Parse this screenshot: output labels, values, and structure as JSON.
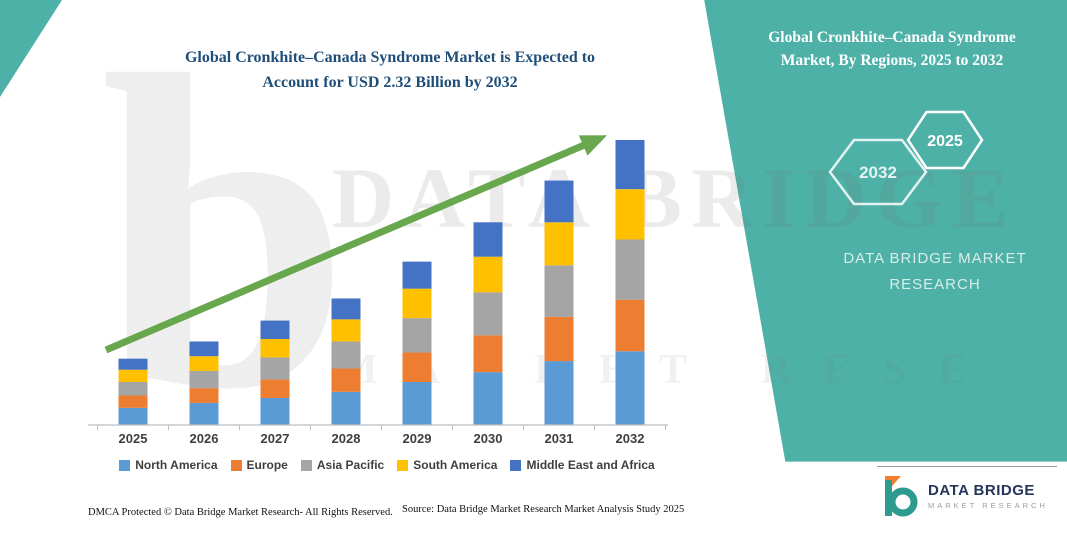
{
  "main": {
    "title_line1": "Global Cronkhite–Canada Syndrome Market is Expected to",
    "title_line2": "Account for USD 2.32 Billion by 2032"
  },
  "side_panel": {
    "heading": "Global Cronkhite–Canada Syndrome Market, By Regions, 2025 to 2032",
    "hex_back_label": "2032",
    "hex_front_label": "2025",
    "brand_line1": "DATA BRIDGE MARKET",
    "brand_line2": "RESEARCH",
    "bg_color": "#4db1a7"
  },
  "watermark": {
    "letter": "b",
    "line1": "DATA BRIDGE",
    "line2": "MARKET RESE"
  },
  "footer": {
    "dmca": "DMCA Protected © Data Bridge Market Research-  All Rights Reserved.",
    "source": "Source: Data Bridge Market Research  Market Analysis Study 2025"
  },
  "logo": {
    "name": "DATA BRIDGE",
    "tagline": "MARKET RESEARCH"
  },
  "chart_data": {
    "type": "bar",
    "stacked": true,
    "title": "Global Cronkhite–Canada Syndrome Market is Expected to Account for USD 2.32 Billion by 2032",
    "unit": "USD Billion",
    "categories": [
      "2025",
      "2026",
      "2027",
      "2028",
      "2029",
      "2030",
      "2031",
      "2032"
    ],
    "series": [
      {
        "name": "North America",
        "color": "#5B9BD5",
        "values": [
          0.14,
          0.18,
          0.22,
          0.27,
          0.35,
          0.43,
          0.52,
          0.6
        ]
      },
      {
        "name": "Europe",
        "color": "#ED7D31",
        "values": [
          0.1,
          0.12,
          0.15,
          0.19,
          0.24,
          0.3,
          0.36,
          0.42
        ]
      },
      {
        "name": "Asia Pacific",
        "color": "#A5A5A5",
        "values": [
          0.11,
          0.14,
          0.18,
          0.22,
          0.28,
          0.35,
          0.42,
          0.49
        ]
      },
      {
        "name": "South America",
        "color": "#FFC000",
        "values": [
          0.1,
          0.12,
          0.15,
          0.18,
          0.24,
          0.29,
          0.35,
          0.41
        ]
      },
      {
        "name": "Middle East and Africa",
        "color": "#4472C4",
        "values": [
          0.09,
          0.12,
          0.15,
          0.17,
          0.22,
          0.28,
          0.34,
          0.4
        ]
      }
    ],
    "totals": [
      0.54,
      0.68,
      0.85,
      1.03,
      1.33,
      1.65,
      1.99,
      2.32
    ],
    "ylim": [
      0,
      2.4
    ],
    "grid": false,
    "legend_position": "bottom",
    "trend_arrow": true,
    "axis_color": "#bfbfbf",
    "tick_label_color": "#3f3f3f"
  }
}
